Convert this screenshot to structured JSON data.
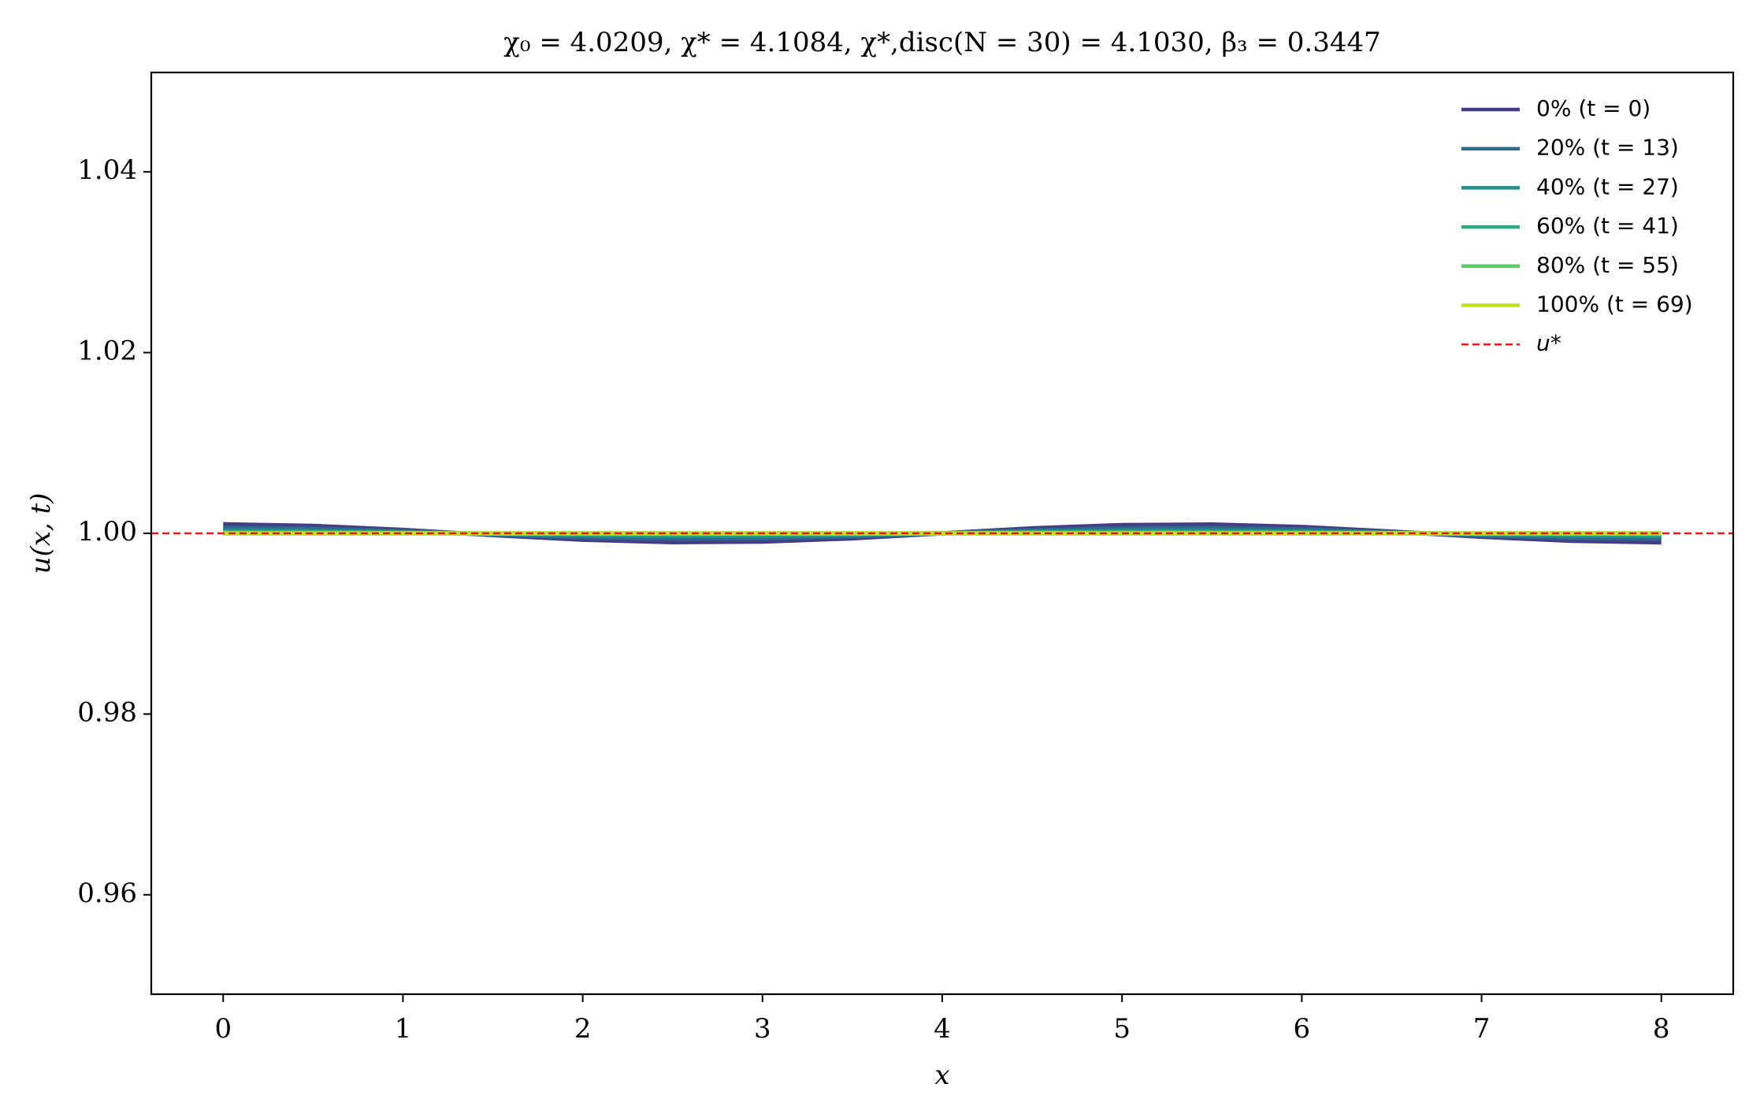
{
  "chart_data": {
    "type": "line",
    "title": "χ₀ = 4.0209,  χ* = 4.1084,  χ*,disc(N = 30) = 4.1030,  β₃ = 0.3447",
    "x_label": "x",
    "y_label": "u(x, t)",
    "x": [
      0,
      0.5,
      1,
      1.5,
      2,
      2.5,
      3,
      3.5,
      4,
      4.5,
      5,
      5.5,
      6,
      6.5,
      7,
      7.5,
      8
    ],
    "series": [
      {
        "name": "0% (t = 0)",
        "color": "#433e85",
        "values": [
          1.001,
          1.00083,
          1.00038,
          0.9998,
          0.99929,
          0.99902,
          0.99908,
          0.99944,
          1.0,
          1.00056,
          1.00092,
          1.00098,
          1.00071,
          1.0002,
          0.99962,
          0.99917,
          0.999
        ]
      },
      {
        "name": "20% (t = 13)",
        "color": "#31688e",
        "values": [
          1.0006,
          1.0005,
          1.00023,
          0.99988,
          0.99958,
          0.99941,
          0.99945,
          0.99967,
          1.0,
          1.00033,
          1.00055,
          1.00059,
          1.00042,
          1.00012,
          0.99977,
          0.9995,
          0.9994
        ]
      },
      {
        "name": "40% (t = 27)",
        "color": "#21918c",
        "values": [
          1.0003,
          1.00025,
          1.00011,
          0.99994,
          0.99979,
          0.99971,
          0.99972,
          0.99983,
          1.0,
          1.00017,
          1.00028,
          1.00029,
          1.00021,
          1.00006,
          0.99989,
          0.99975,
          0.9997
        ]
      },
      {
        "name": "60% (t = 41)",
        "color": "#29af7f",
        "values": [
          1.0001,
          1.00008,
          1.00004,
          0.99998,
          0.99993,
          0.9999,
          0.99991,
          0.99994,
          1.0,
          1.00006,
          1.00009,
          1.0001,
          1.00007,
          1.00002,
          0.99996,
          0.99992,
          0.9999
        ]
      },
      {
        "name": "80% (t = 55)",
        "color": "#5ec962",
        "values": [
          1.0,
          1.0,
          1.0,
          1.0,
          1.0,
          1.0,
          1.0,
          1.0,
          1.0,
          1.0,
          1.0,
          1.0,
          1.0,
          1.0,
          1.0,
          1.0,
          1.0
        ]
      },
      {
        "name": "100% (t = 69)",
        "color": "#bddf26",
        "values": [
          1.0,
          1.0,
          1.0,
          1.0,
          1.0,
          1.0,
          1.0,
          1.0,
          1.0,
          1.0,
          1.0,
          1.0,
          1.0,
          1.0,
          1.0,
          1.0,
          1.0
        ]
      }
    ],
    "reference_line": {
      "name": "u*",
      "value": 1,
      "color": "#e41a1c"
    },
    "xlim": [
      -0.4,
      8.4
    ],
    "ylim": [
      0.949,
      1.051
    ],
    "xticks": [
      0,
      1,
      2,
      3,
      4,
      5,
      6,
      7,
      8
    ],
    "yticks": [
      0.96,
      0.98,
      {
        "value": 1,
        "label": "1.00"
      },
      1.02,
      1.04
    ],
    "legend": "upper right"
  }
}
